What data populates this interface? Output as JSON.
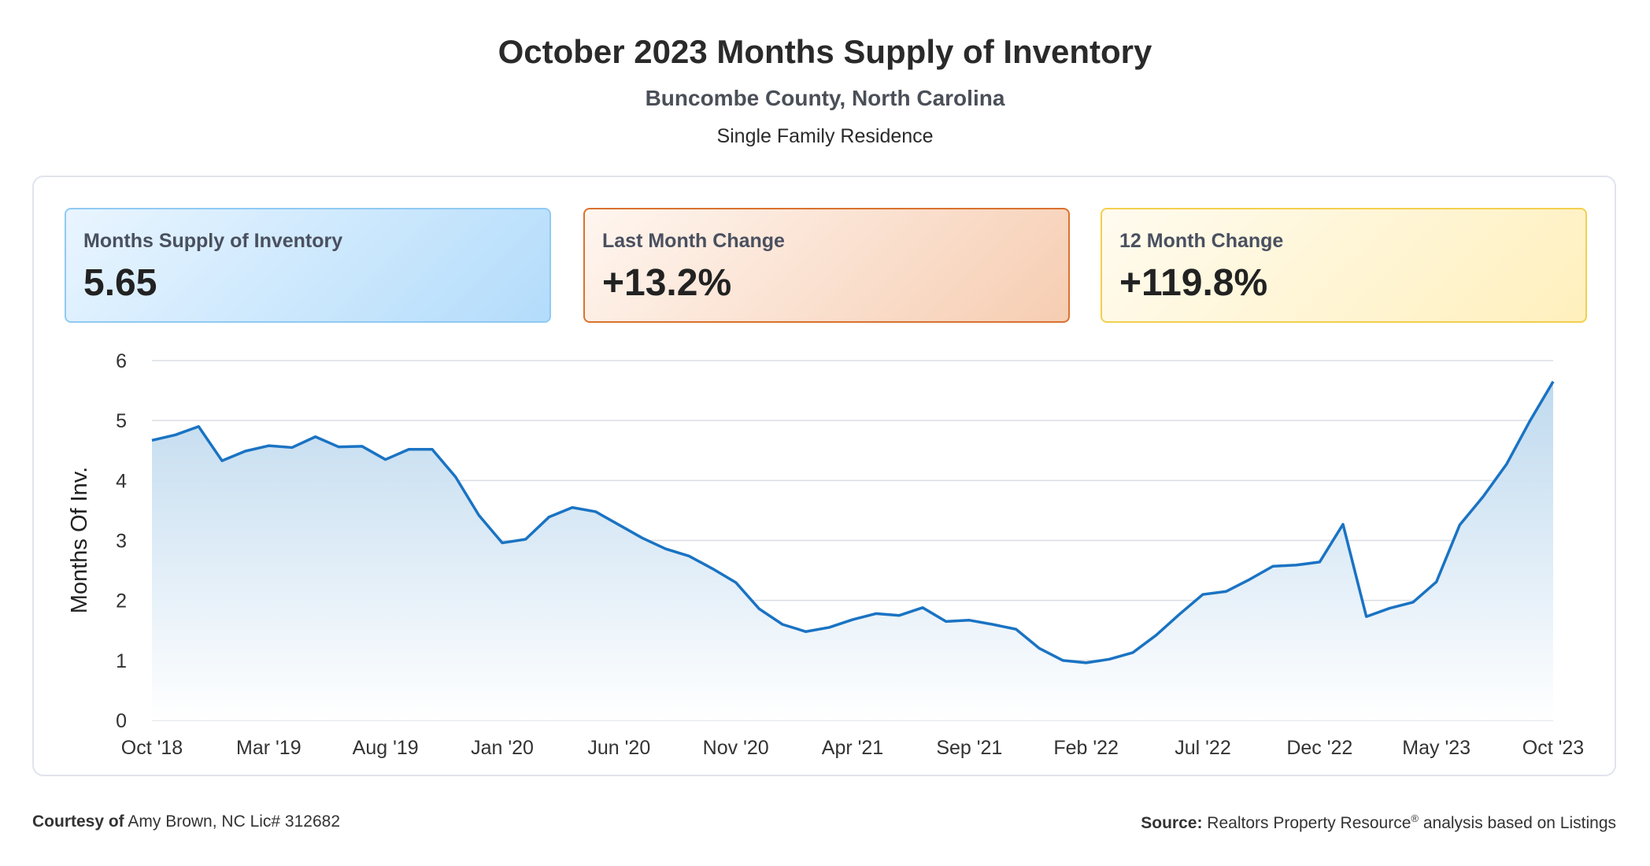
{
  "header": {
    "title": "October 2023 Months Supply of Inventory",
    "subtitle": "Buncombe County, North Carolina",
    "property_type": "Single Family Residence"
  },
  "cards": [
    {
      "label": "Months Supply of Inventory",
      "value": "5.65"
    },
    {
      "label": "Last Month Change",
      "value": "+13.2%"
    },
    {
      "label": "12 Month Change",
      "value": "+119.8%"
    }
  ],
  "footer": {
    "courtesy_label": "Courtesy of",
    "courtesy_text": "Amy Brown, NC Lic# 312682",
    "source_label": "Source:",
    "source_text_1": "Realtors Property Resource",
    "source_sup": "®",
    "source_text_2": "analysis based on Listings"
  },
  "colors": {
    "line": "#1a73c3",
    "area_top": "#bcd8ee",
    "area_bottom": "#ffffff",
    "grid": "#d9dde3",
    "axis_text": "#333333"
  },
  "chart_data": {
    "type": "area",
    "title": "October 2023 Months Supply of Inventory",
    "ylabel": "Months Of Inv.",
    "xlabel": "",
    "ylim": [
      0,
      6
    ],
    "yticks": [
      0,
      1,
      2,
      3,
      4,
      5,
      6
    ],
    "grid": true,
    "legend": "none",
    "x_tick_labels": [
      "Oct '18",
      "Mar '19",
      "Aug '19",
      "Jan '20",
      "Jun '20",
      "Nov '20",
      "Apr '21",
      "Sep '21",
      "Feb '22",
      "Jul '22",
      "Dec '22",
      "May '23",
      "Oct '23"
    ],
    "x_tick_every": 5,
    "x": [
      "Oct '18",
      "Nov '18",
      "Dec '18",
      "Jan '19",
      "Feb '19",
      "Mar '19",
      "Apr '19",
      "May '19",
      "Jun '19",
      "Jul '19",
      "Aug '19",
      "Sep '19",
      "Oct '19",
      "Nov '19",
      "Dec '19",
      "Jan '20",
      "Feb '20",
      "Mar '20",
      "Apr '20",
      "May '20",
      "Jun '20",
      "Jul '20",
      "Aug '20",
      "Sep '20",
      "Oct '20",
      "Nov '20",
      "Dec '20",
      "Jan '21",
      "Feb '21",
      "Mar '21",
      "Apr '21",
      "May '21",
      "Jun '21",
      "Jul '21",
      "Aug '21",
      "Sep '21",
      "Oct '21",
      "Nov '21",
      "Dec '21",
      "Jan '22",
      "Feb '22",
      "Mar '22",
      "Apr '22",
      "May '22",
      "Jun '22",
      "Jul '22",
      "Aug '22",
      "Sep '22",
      "Oct '22",
      "Nov '22",
      "Dec '22",
      "Jan '23",
      "Feb '23",
      "Mar '23",
      "Apr '23",
      "May '23",
      "Jun '23",
      "Jul '23",
      "Aug '23",
      "Sep '23",
      "Oct '23"
    ],
    "series": [
      {
        "values": [
          4.67,
          4.76,
          4.9,
          4.33,
          4.49,
          4.58,
          4.55,
          4.73,
          4.56,
          4.57,
          4.35,
          4.52,
          4.52,
          4.06,
          3.42,
          2.96,
          3.02,
          3.39,
          3.55,
          3.48,
          3.26,
          3.04,
          2.86,
          2.74,
          2.53,
          2.3,
          1.86,
          1.6,
          1.48,
          1.55,
          1.68,
          1.78,
          1.75,
          1.88,
          1.65,
          1.67,
          1.6,
          1.52,
          1.2,
          1.0,
          0.96,
          1.02,
          1.13,
          1.42,
          1.77,
          2.1,
          2.15,
          2.35,
          2.57,
          2.59,
          2.64,
          3.27,
          1.73,
          1.87,
          1.97,
          2.31,
          3.26,
          3.73,
          4.27,
          4.99,
          5.65
        ]
      }
    ]
  }
}
